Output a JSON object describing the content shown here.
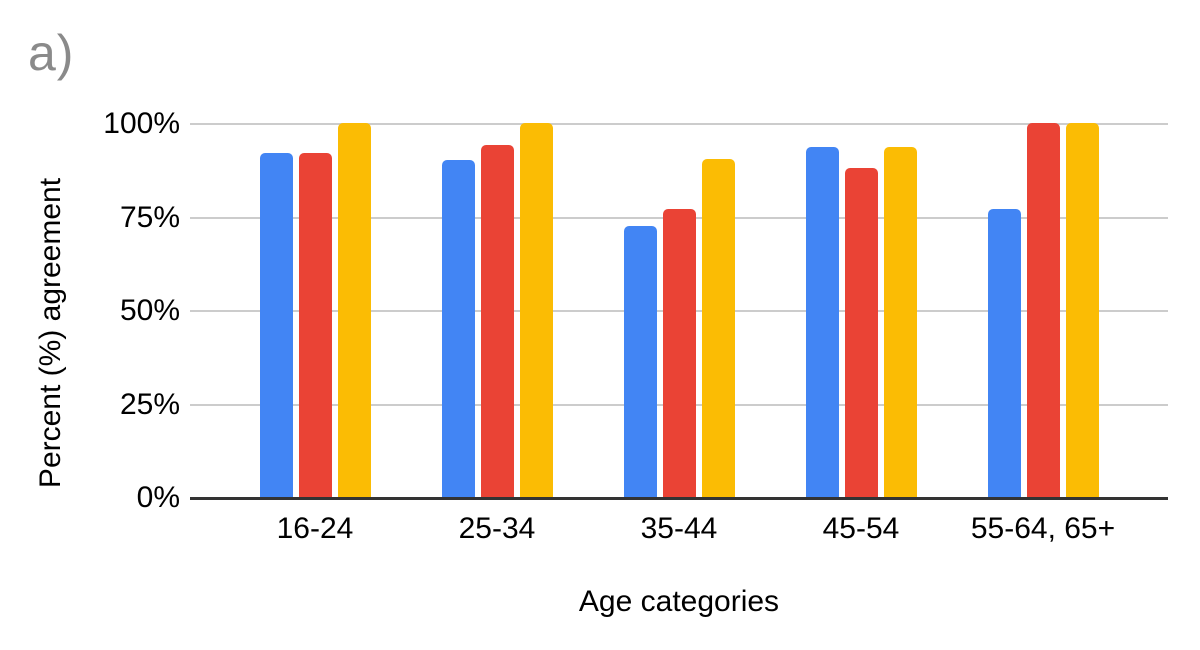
{
  "chart_data": {
    "type": "bar",
    "title": "a)",
    "panel_label": "a)",
    "categories": [
      "16-24",
      "25-34",
      "35-44",
      "45-54",
      "55-64, 65+"
    ],
    "series": [
      {
        "name": "blue-series",
        "color": "#4285F4",
        "values": [
          92,
          90,
          72.5,
          93.5,
          77
        ]
      },
      {
        "name": "red-series",
        "color": "#EA4335",
        "values": [
          92,
          94,
          77,
          88,
          100
        ]
      },
      {
        "name": "yellow-series",
        "color": "#FBBC04",
        "values": [
          100,
          100,
          90.5,
          93.5,
          100
        ]
      }
    ],
    "xlabel": "Age categories",
    "ylabel": "Percent (%) agreement",
    "ylim": [
      0,
      100
    ],
    "yticks": [
      {
        "value": 0,
        "label": "0%"
      },
      {
        "value": 25,
        "label": "25%"
      },
      {
        "value": 50,
        "label": "50%"
      },
      {
        "value": 75,
        "label": "75%"
      },
      {
        "value": 100,
        "label": "100%"
      }
    ],
    "grid": true,
    "legend": false,
    "colors": {
      "gridline": "#cccccc",
      "axis_line": "#333333",
      "tick_text": "#000000",
      "panel_label_text": "#8a8a8a",
      "background": "#ffffff"
    }
  }
}
